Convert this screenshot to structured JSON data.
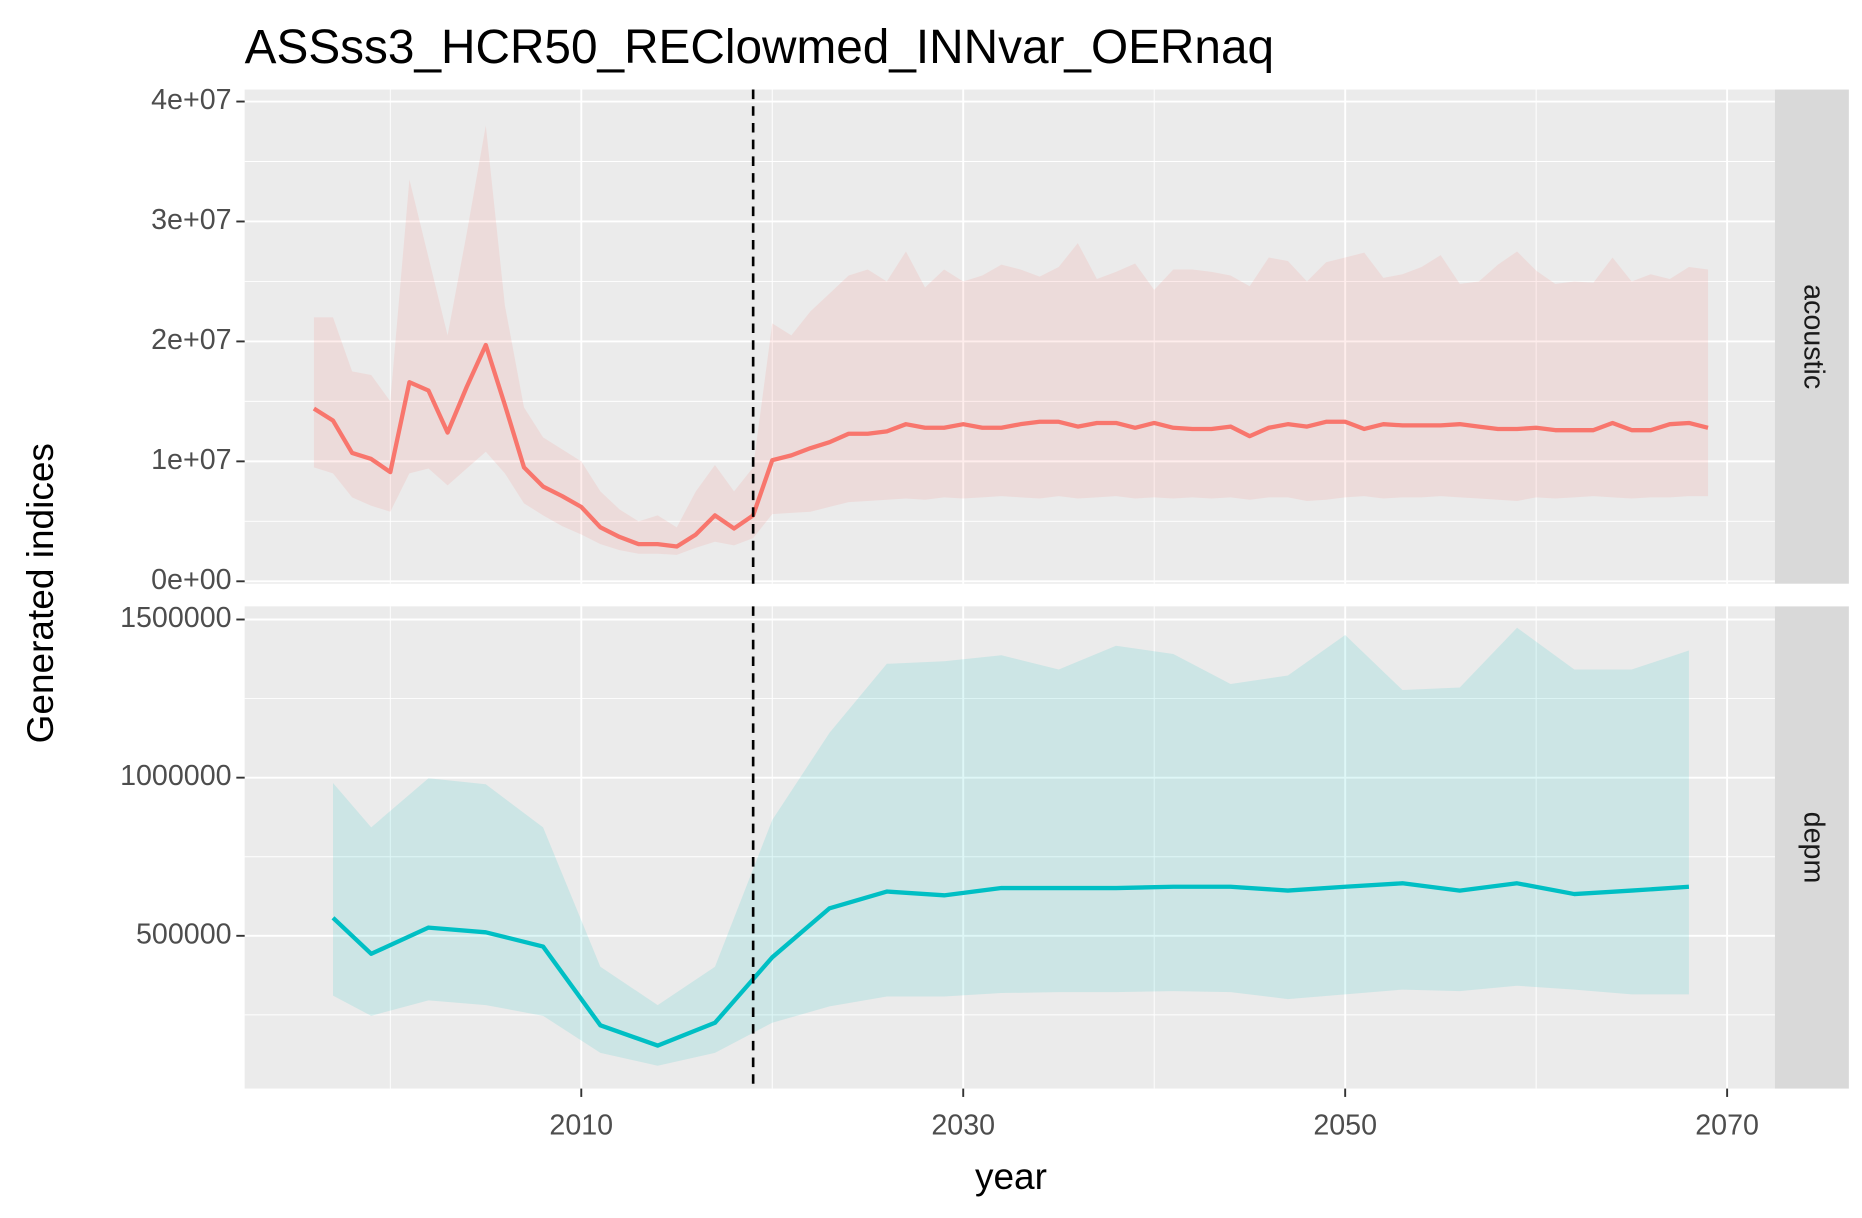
{
  "chart_data": {
    "type": "line",
    "title": "ASSss3_HCR50_REClowmed_INNvar_OERnaq",
    "x_label": "year",
    "y_label": "Generated indices",
    "vline": 2019,
    "xlim": [
      1992.375,
      2072.5
    ],
    "xticks": [
      2010,
      2030,
      2050,
      2070
    ],
    "minor_xticks": [
      2000,
      2020,
      2040,
      2060
    ],
    "grid": true,
    "facets": [
      {
        "strip": "acoustic",
        "color": "#F8766D",
        "ylim": [
          -200000,
          41000000
        ],
        "yticks": [
          {
            "value": 0,
            "label": "0e+00"
          },
          {
            "value": 10000000,
            "label": "1e+07"
          },
          {
            "value": 20000000,
            "label": "2e+07"
          },
          {
            "value": 30000000,
            "label": "3e+07"
          },
          {
            "value": 40000000,
            "label": "4e+07"
          }
        ],
        "minor_yticks": [
          5000000,
          15000000,
          25000000,
          35000000
        ],
        "x": [
          1996,
          1997,
          1998,
          1999,
          2000,
          2001,
          2002,
          2003,
          2004,
          2005,
          2006,
          2007,
          2008,
          2009,
          2010,
          2011,
          2012,
          2013,
          2014,
          2015,
          2016,
          2017,
          2018,
          2019,
          2020,
          2021,
          2022,
          2023,
          2024,
          2025,
          2026,
          2027,
          2028,
          2029,
          2030,
          2031,
          2032,
          2033,
          2034,
          2035,
          2036,
          2037,
          2038,
          2039,
          2040,
          2041,
          2042,
          2043,
          2044,
          2045,
          2046,
          2047,
          2048,
          2049,
          2050,
          2051,
          2052,
          2053,
          2054,
          2055,
          2056,
          2057,
          2058,
          2059,
          2060,
          2061,
          2062,
          2063,
          2064,
          2065,
          2066,
          2067,
          2068,
          2069
        ],
        "values": [
          14400000,
          13400000,
          10700000,
          10200000,
          9100000,
          16600000,
          15900000,
          12400000,
          16200000,
          19700000,
          14700000,
          9500000,
          7900000,
          7100000,
          6200000,
          4500000,
          3700000,
          3100000,
          3100000,
          2900000,
          3900000,
          5500000,
          4400000,
          5500000,
          10100000,
          10500000,
          11100000,
          11600000,
          12300000,
          12300000,
          12500000,
          13100000,
          12800000,
          12800000,
          13100000,
          12800000,
          12800000,
          13100000,
          13300000,
          13300000,
          12900000,
          13200000,
          13200000,
          12800000,
          13200000,
          12800000,
          12700000,
          12700000,
          12900000,
          12100000,
          12800000,
          13100000,
          12900000,
          13300000,
          13300000,
          12700000,
          13100000,
          13000000,
          13000000,
          13000000,
          13100000,
          12900000,
          12700000,
          12700000,
          12800000,
          12600000,
          12600000,
          12600000,
          13200000,
          12600000,
          12600000,
          13100000,
          13200000,
          12800000
        ],
        "lower": [
          9500000,
          9000000,
          7000000,
          6300000,
          5800000,
          9000000,
          9400000,
          8000000,
          9400000,
          10800000,
          9000000,
          6500000,
          5500000,
          4600000,
          3900000,
          3100000,
          2600000,
          2300000,
          2300000,
          2200000,
          2800000,
          3300000,
          3000000,
          3600000,
          5600000,
          5700000,
          5800000,
          6200000,
          6600000,
          6700000,
          6800000,
          6900000,
          6800000,
          7000000,
          6900000,
          7000000,
          7100000,
          7000000,
          6900000,
          7100000,
          6900000,
          7000000,
          7100000,
          6900000,
          7000000,
          6900000,
          7000000,
          6900000,
          7000000,
          6800000,
          7000000,
          7000000,
          6700000,
          6800000,
          7000000,
          7100000,
          6900000,
          7000000,
          7000000,
          7100000,
          7000000,
          6900000,
          6800000,
          6700000,
          7000000,
          6900000,
          7000000,
          7100000,
          7000000,
          6900000,
          7000000,
          7000000,
          7100000,
          7100000
        ],
        "upper": [
          22000000,
          22000000,
          17500000,
          17200000,
          15000000,
          33500000,
          27000000,
          20500000,
          29000000,
          38000000,
          23000000,
          14500000,
          12000000,
          11000000,
          10000000,
          7500000,
          6000000,
          5000000,
          5500000,
          4500000,
          7500000,
          9700000,
          7500000,
          9500000,
          21500000,
          20500000,
          22500000,
          24000000,
          25500000,
          26000000,
          25000000,
          27500000,
          24500000,
          26000000,
          25000000,
          25500000,
          26400000,
          26000000,
          25400000,
          26200000,
          28200000,
          25200000,
          25800000,
          26500000,
          24300000,
          26000000,
          26000000,
          25800000,
          25500000,
          24600000,
          27000000,
          26700000,
          25000000,
          26600000,
          27000000,
          27400000,
          25300000,
          25600000,
          26200000,
          27200000,
          24800000,
          25000000,
          26400000,
          27500000,
          25900000,
          24800000,
          25000000,
          24900000,
          27000000,
          25000000,
          25600000,
          25200000,
          26200000,
          26000000
        ]
      },
      {
        "strip": "depm",
        "color": "#00BFC4",
        "ylim": [
          17000,
          1541500
        ],
        "yticks": [
          500000,
          1000000,
          1500000
        ],
        "minor_yticks": [
          250000,
          750000,
          1250000
        ],
        "x": [
          1997,
          1999,
          2002,
          2005,
          2008,
          2011,
          2014,
          2017,
          2020,
          2023,
          2026,
          2029,
          2032,
          2035,
          2038,
          2041,
          2044,
          2047,
          2050,
          2053,
          2056,
          2059,
          2062,
          2065,
          2068
        ],
        "values": [
          557000,
          443000,
          526000,
          511000,
          466000,
          217000,
          153000,
          225000,
          432000,
          587000,
          640000,
          628000,
          651000,
          651000,
          651000,
          655000,
          655000,
          643000,
          655000,
          666000,
          643000,
          666000,
          632000,
          643000,
          655000
        ],
        "lower": [
          311000,
          247000,
          296000,
          281000,
          247000,
          130000,
          89000,
          130000,
          225000,
          277000,
          308000,
          308000,
          319000,
          322000,
          322000,
          325000,
          322000,
          300000,
          315000,
          330000,
          325000,
          342000,
          330000,
          315000,
          315000
        ],
        "upper": [
          983000,
          843000,
          998000,
          979000,
          843000,
          402000,
          281000,
          402000,
          866000,
          1142000,
          1360000,
          1368000,
          1387000,
          1342000,
          1417000,
          1391000,
          1296000,
          1323000,
          1451000,
          1277000,
          1285000,
          1474000,
          1342000,
          1342000,
          1402000
        ]
      }
    ]
  }
}
